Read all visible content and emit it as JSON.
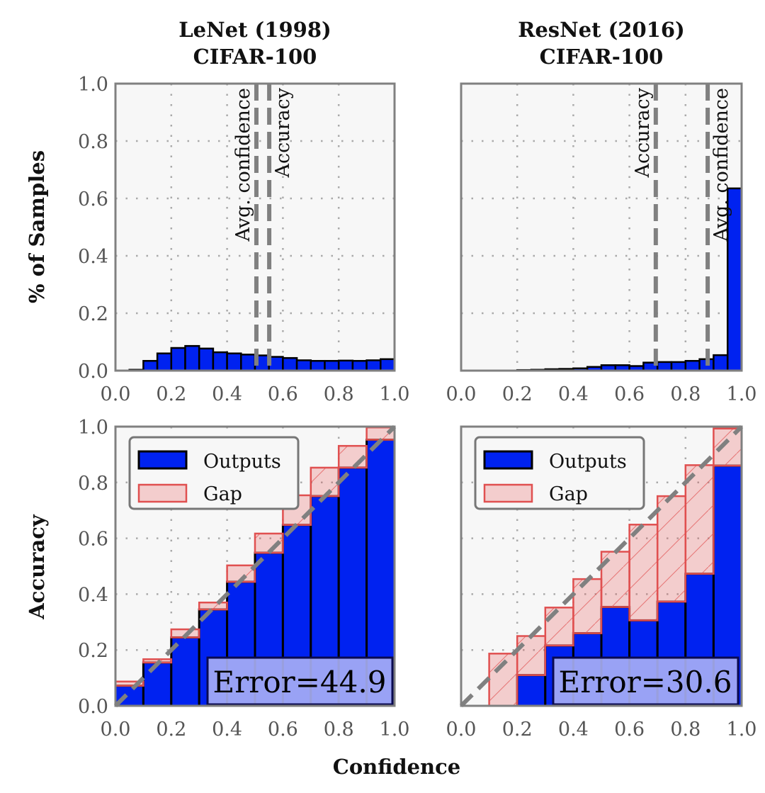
{
  "colors": {
    "outputs": "#0022f0",
    "gap_fill": "rgba(230,80,80,0.25)",
    "gap_edge": "#e05050",
    "reference_line": "#808080",
    "error_box": "#aab0f5"
  },
  "xlabel": "Confidence",
  "chart_data": [
    {
      "type": "bar",
      "title": [
        "LeNet (1998)",
        "CIFAR-100"
      ],
      "ylabel": "% of Samples",
      "xlim": [
        0,
        1
      ],
      "ylim": [
        0,
        1
      ],
      "xticks": [
        "0.0",
        "0.2",
        "0.4",
        "0.6",
        "0.8",
        "1.0"
      ],
      "yticks": [
        "0.0",
        "0.2",
        "0.4",
        "0.6",
        "0.8",
        "1.0"
      ],
      "grid": true,
      "bin_width": 0.05,
      "values": [
        0,
        0.003,
        0.034,
        0.06,
        0.079,
        0.086,
        0.077,
        0.064,
        0.06,
        0.056,
        0.053,
        0.048,
        0.044,
        0.036,
        0.034,
        0.034,
        0.035,
        0.034,
        0.036,
        0.04
      ],
      "vlines": [
        {
          "label": "Avg. confidence",
          "x": 0.505
        },
        {
          "label": "Accuracy",
          "x": 0.551
        }
      ]
    },
    {
      "type": "bar",
      "title": [
        "ResNet (2016)",
        "CIFAR-100"
      ],
      "xlim": [
        0,
        1
      ],
      "ylim": [
        0,
        1
      ],
      "xticks": [
        "0.0",
        "0.2",
        "0.4",
        "0.6",
        "0.8",
        "1.0"
      ],
      "grid": true,
      "bin_width": 0.05,
      "values": [
        0,
        0,
        0,
        0,
        0.002,
        0.003,
        0.005,
        0.006,
        0.008,
        0.013,
        0.019,
        0.019,
        0.016,
        0.028,
        0.03,
        0.03,
        0.034,
        0.04,
        0.054,
        0.635
      ],
      "vlines": [
        {
          "label": "Accuracy",
          "x": 0.694
        },
        {
          "label": "Avg. confidence",
          "x": 0.879
        }
      ]
    },
    {
      "type": "bar",
      "ylabel": "Accuracy",
      "xlabel": "Confidence",
      "xlim": [
        0,
        1
      ],
      "ylim": [
        0,
        1
      ],
      "xticks": [
        "0.0",
        "0.2",
        "0.4",
        "0.6",
        "0.8",
        "1.0"
      ],
      "yticks": [
        "0.0",
        "0.2",
        "0.4",
        "0.6",
        "0.8",
        "1.0"
      ],
      "grid": true,
      "bin_width": 0.1,
      "legend": {
        "position": "top-left",
        "entries": [
          "Outputs",
          "Gap"
        ]
      },
      "series": [
        {
          "name": "Outputs",
          "values": [
            0.072,
            0.155,
            0.245,
            0.345,
            0.444,
            0.548,
            0.648,
            0.751,
            0.853,
            0.953
          ]
        },
        {
          "name": "Gap",
          "values": [
            0.087,
            0.167,
            0.274,
            0.37,
            0.503,
            0.617,
            0.754,
            0.853,
            0.931,
            0.997
          ]
        }
      ],
      "annotation": "Error=44.9"
    },
    {
      "type": "bar",
      "xlim": [
        0,
        1
      ],
      "ylim": [
        0,
        1
      ],
      "xticks": [
        "0.0",
        "0.2",
        "0.4",
        "0.6",
        "0.8",
        "1.0"
      ],
      "grid": true,
      "bin_width": 0.1,
      "legend": {
        "position": "top-left",
        "entries": [
          "Outputs",
          "Gap"
        ]
      },
      "series": [
        {
          "name": "Outputs",
          "values": [
            0,
            0,
            0.11,
            0.216,
            0.26,
            0.354,
            0.306,
            0.373,
            0.473,
            0.86
          ]
        },
        {
          "name": "Gap",
          "values": [
            0,
            0.187,
            0.25,
            0.352,
            0.454,
            0.552,
            0.649,
            0.751,
            0.862,
            0.993
          ]
        }
      ],
      "annotation": "Error=30.6"
    }
  ]
}
